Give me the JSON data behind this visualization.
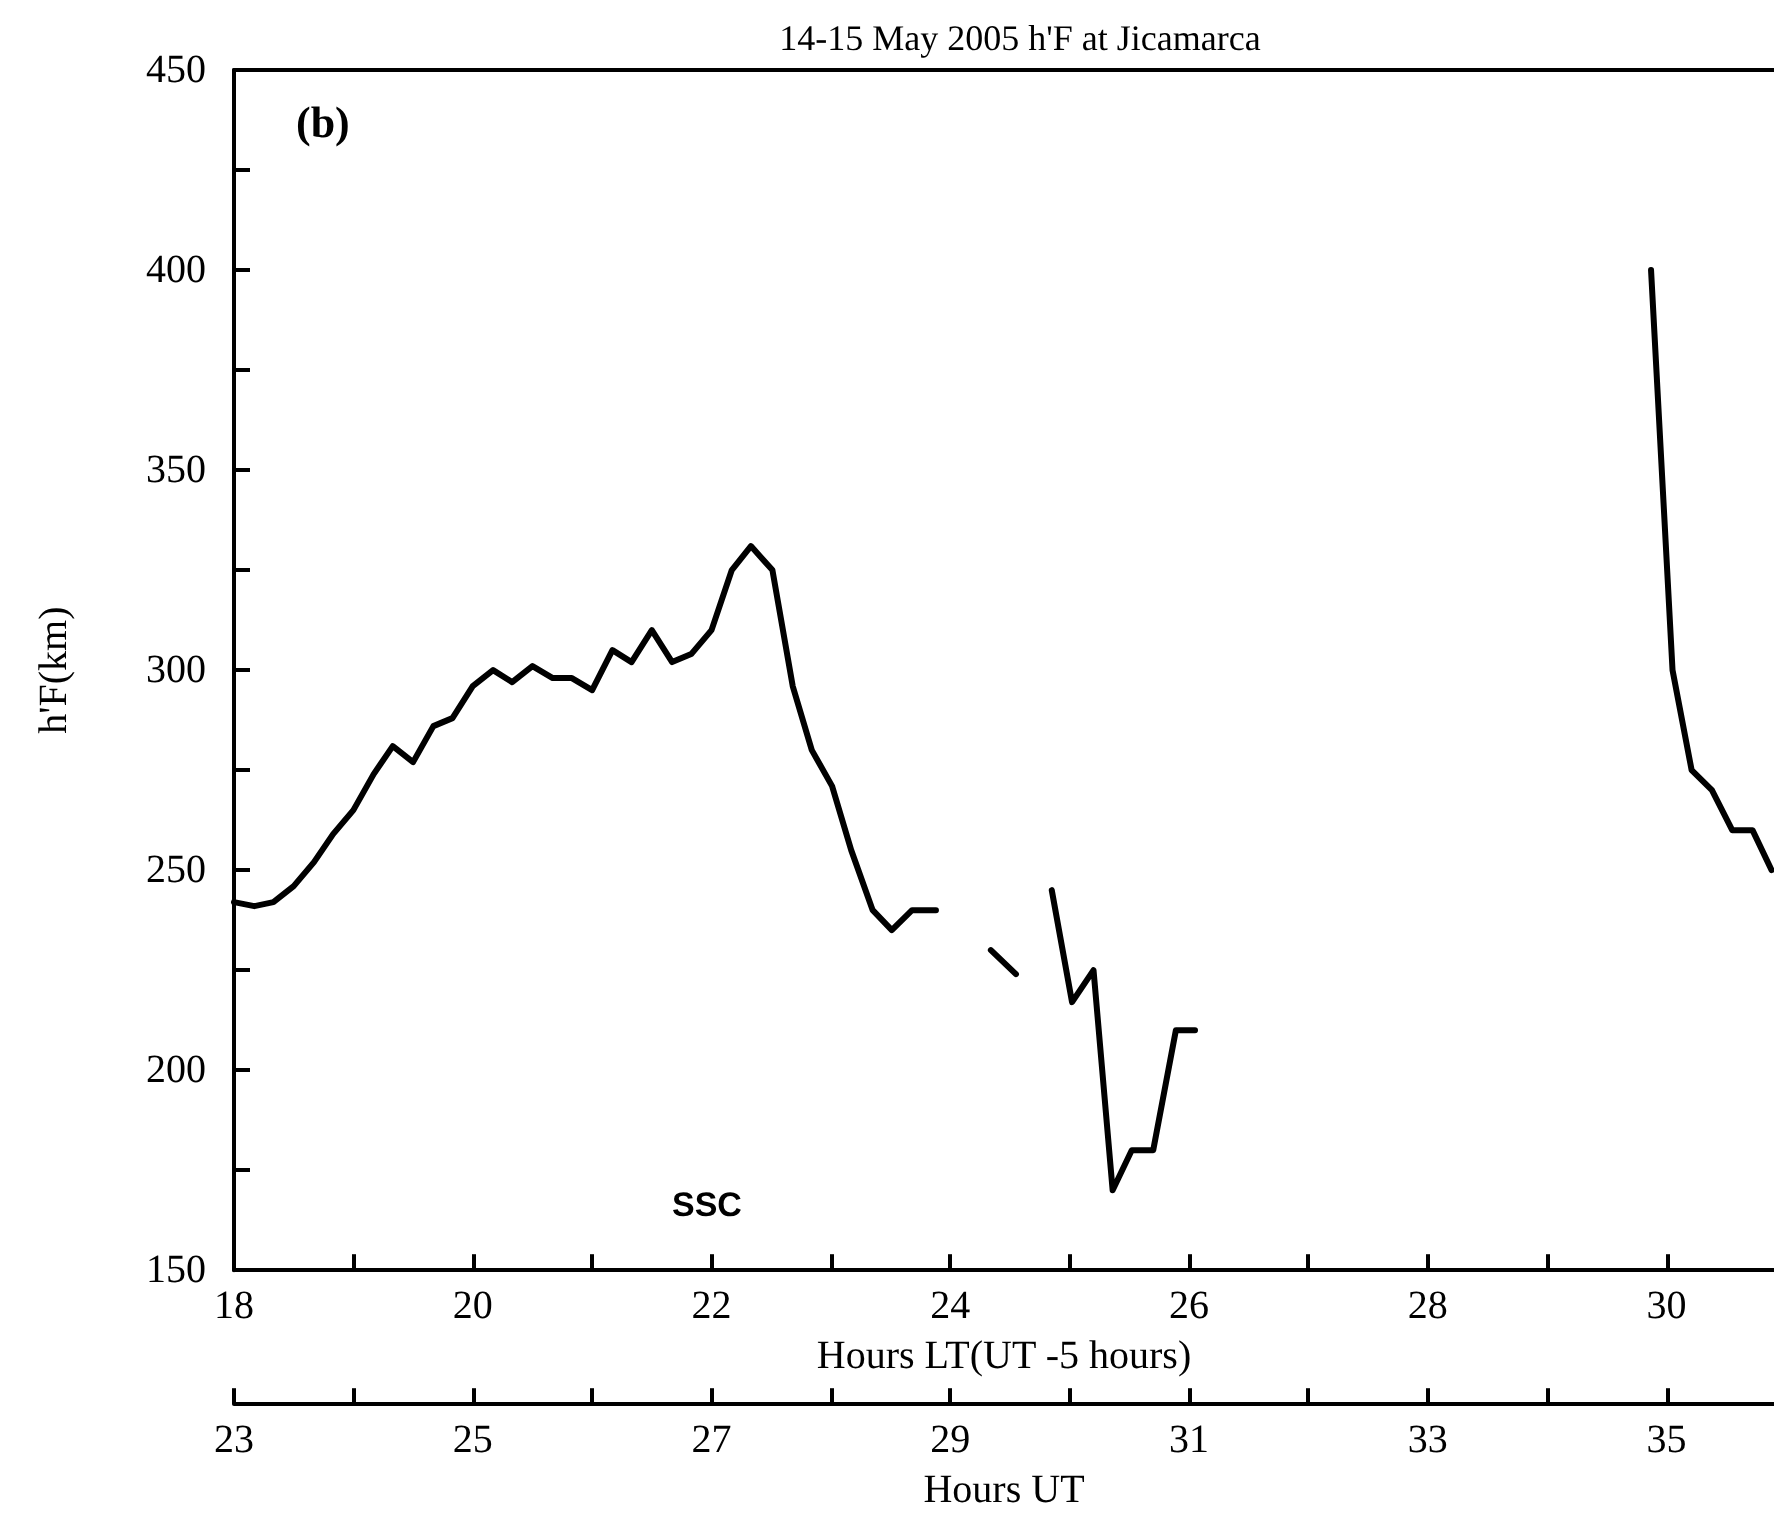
{
  "chart_data": {
    "type": "line",
    "title": "14-15 May 2005 h'F at Jicamarca",
    "xlabel": "Hours LT(UT -5 hours)",
    "x2label": "Hours UT",
    "ylabel": "h'F(km)",
    "annotations": [
      "(b)",
      "SSC"
    ],
    "x": [
      18,
      18.17,
      18.33,
      18.5,
      18.67,
      18.83,
      19,
      19.17,
      19.33,
      19.5,
      19.67,
      19.83,
      20,
      20.17,
      20.33,
      20.5,
      20.67,
      20.83,
      21,
      21.17,
      21.33,
      21.5,
      21.67,
      21.83,
      22,
      22.17,
      22.33,
      22.51,
      22.68,
      22.84,
      23.01,
      23.17,
      23.35,
      23.51,
      23.68,
      23.88,
      24.1,
      24.34,
      24.55,
      24.7,
      24.85,
      25.02,
      25.2,
      25.36,
      25.52,
      25.7,
      25.89,
      26.05,
      28,
      29.87,
      30.05,
      30.21,
      30.38,
      30.55,
      30.72,
      30.88
    ],
    "series": [
      {
        "color": "#000000",
        "values": [
          242,
          241,
          242,
          246,
          252,
          259,
          265,
          274,
          281,
          277,
          286,
          288,
          296,
          300,
          297,
          301,
          298,
          298,
          295,
          305,
          302,
          310,
          302,
          304,
          310,
          325,
          331,
          325,
          296,
          280,
          271,
          255,
          240,
          235,
          240,
          240,
          null,
          230,
          224,
          null,
          245,
          217,
          225,
          170,
          180,
          180,
          210,
          210,
          null,
          400,
          300,
          275,
          270,
          260,
          260,
          250
        ]
      }
    ],
    "xlim": [
      18,
      30.9
    ],
    "xticks": [
      18,
      {
        "value": 19,
        "label": null
      },
      20,
      {
        "value": 21,
        "label": null
      },
      22,
      {
        "value": 23,
        "label": null
      },
      24,
      {
        "value": 25,
        "label": null
      },
      26,
      {
        "value": 27,
        "label": null
      },
      28,
      {
        "value": 29,
        "label": null
      },
      30
    ],
    "x2lim": [
      23,
      35.9
    ],
    "x2ticks": [
      23,
      {
        "value": 24,
        "label": null
      },
      25,
      {
        "value": 26,
        "label": null
      },
      27,
      {
        "value": 28,
        "label": null
      },
      29,
      {
        "value": 30,
        "label": null
      },
      31,
      {
        "value": 32,
        "label": null
      },
      33,
      {
        "value": 34,
        "label": null
      },
      35
    ],
    "ylim": [
      150,
      450
    ],
    "yticks": [
      150,
      {
        "value": 175,
        "label": null
      },
      200,
      {
        "value": 225,
        "label": null
      },
      250,
      {
        "value": 275,
        "label": null
      },
      300,
      {
        "value": 325,
        "label": null
      },
      350,
      {
        "value": 375,
        "label": null
      },
      400,
      {
        "value": 425,
        "label": null
      },
      450
    ],
    "grid": false,
    "marker": "none",
    "line_style": "solid"
  }
}
